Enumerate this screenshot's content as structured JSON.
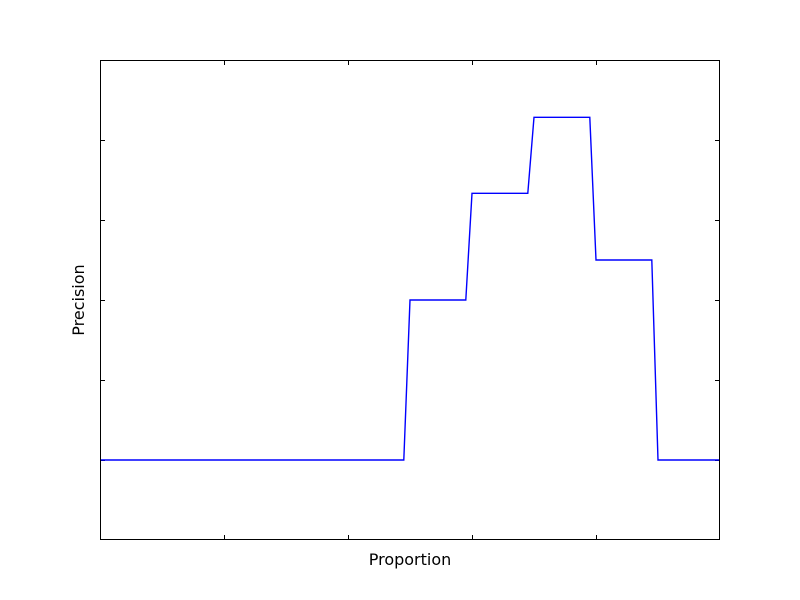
{
  "chart_data": {
    "type": "line",
    "title": "",
    "xlabel": "Proportion",
    "ylabel": "Precision",
    "xlim": [
      0,
      1
    ],
    "ylim": [
      0,
      1
    ],
    "x_ticks": [
      0.2,
      0.4,
      0.6,
      0.8
    ],
    "y_ticks": [
      0.1667,
      0.3333,
      0.5,
      0.6667,
      0.8333
    ],
    "grid": false,
    "legend": "none",
    "series": [
      {
        "name": "precision",
        "color": "#0000ff",
        "x": [
          0.0,
          0.49,
          0.5,
          0.59,
          0.6,
          0.69,
          0.7,
          0.79,
          0.8,
          0.89,
          0.9,
          1.0
        ],
        "y": [
          0.1667,
          0.1667,
          0.5,
          0.5,
          0.7222,
          0.7222,
          0.8806,
          0.8806,
          0.5833,
          0.5833,
          0.1667,
          0.1667
        ]
      }
    ]
  }
}
